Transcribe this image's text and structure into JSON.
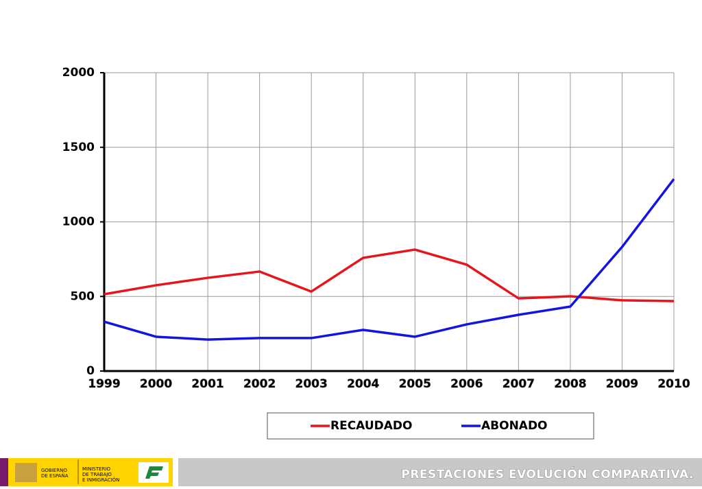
{
  "chart_data": {
    "type": "line",
    "categories": [
      "1999",
      "2000",
      "2001",
      "2002",
      "2003",
      "2004",
      "2005",
      "2006",
      "2007",
      "2008",
      "2009",
      "2010"
    ],
    "series": [
      {
        "name": "RECAUDADO",
        "color": "#e8141c",
        "values": [
          515,
          575,
          625,
          667,
          533,
          759,
          814,
          713,
          487,
          501,
          474,
          469
        ]
      },
      {
        "name": "ABONADO",
        "color": "#1414e0",
        "values": [
          331,
          230,
          211,
          221,
          221,
          276,
          230,
          313,
          377,
          432,
          832,
          1287
        ]
      }
    ],
    "ylim": [
      0,
      2000
    ],
    "yticks": [
      0,
      500,
      1000,
      1500,
      2000
    ],
    "grid": true,
    "legend": "bottom"
  },
  "footer": {
    "title": "PRESTACIONES  EVOLUCIÓN COMPARATIVA.",
    "logo_gobierno": [
      "GOBIERNO",
      "DE ESPAÑA"
    ],
    "logo_ministerio": [
      "MINISTERIO",
      "DE TRABAJO",
      "E INMIGRACIÓN"
    ]
  }
}
